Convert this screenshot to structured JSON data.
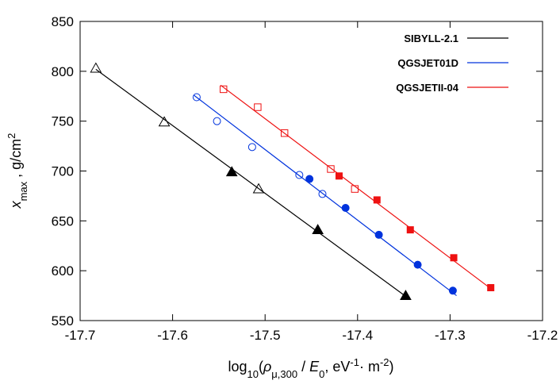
{
  "chart_data": {
    "type": "scatter",
    "xlabel": {
      "parts": [
        {
          "t": "log"
        },
        {
          "t": "10",
          "sub": true
        },
        {
          "t": "("
        },
        {
          "t": "ρ",
          "italic": true
        },
        {
          "t": "μ,300",
          "sub": true,
          "italic_first": true
        },
        {
          "t": " / "
        },
        {
          "t": "E",
          "italic": true
        },
        {
          "t": "0",
          "sub": true
        },
        {
          "t": ",  eV"
        },
        {
          "t": "-1",
          "sup": true
        },
        {
          "t": "· m"
        },
        {
          "t": "-2",
          "sup": true
        },
        {
          "t": ")"
        }
      ]
    },
    "ylabel": {
      "parts": [
        {
          "t": "x",
          "italic": true
        },
        {
          "t": "max",
          "sub": true
        },
        {
          "t": " ,  g/cm"
        },
        {
          "t": "2",
          "sup": true
        }
      ]
    },
    "xlim": [
      -17.7,
      -17.2
    ],
    "ylim": [
      550,
      850
    ],
    "xticks": [
      -17.7,
      -17.6,
      -17.5,
      -17.4,
      -17.3,
      -17.2
    ],
    "yticks": [
      550,
      600,
      650,
      700,
      750,
      800,
      850
    ],
    "grid": false,
    "legend_position": "top-right",
    "series": [
      {
        "name": "SIBYLL-2.1",
        "color": "#000000",
        "fit_line": [
          [
            -17.683,
            802
          ],
          [
            -17.346,
            573
          ]
        ],
        "points_open": {
          "marker": "triangle",
          "data": [
            [
              -17.683,
              803
            ],
            [
              -17.609,
              749
            ],
            [
              -17.507,
              682
            ]
          ]
        },
        "points_filled": {
          "marker": "triangle",
          "data": [
            [
              -17.536,
              699
            ],
            [
              -17.443,
              641
            ],
            [
              -17.348,
              575
            ]
          ]
        }
      },
      {
        "name": "QGSJET01D",
        "color": "#0033dd",
        "fit_line": [
          [
            -17.577,
            776
          ],
          [
            -17.293,
            575
          ]
        ],
        "points_open": {
          "marker": "circle",
          "data": [
            [
              -17.574,
              774
            ],
            [
              -17.552,
              750
            ],
            [
              -17.514,
              724
            ],
            [
              -17.463,
              696
            ],
            [
              -17.438,
              677
            ]
          ]
        },
        "points_filled": {
          "marker": "circle",
          "data": [
            [
              -17.452,
              692
            ],
            [
              -17.413,
              663
            ],
            [
              -17.377,
              636
            ],
            [
              -17.335,
              606
            ],
            [
              -17.297,
              580
            ]
          ]
        }
      },
      {
        "name": "QGSJETII-04",
        "color": "#ee1111",
        "fit_line": [
          [
            -17.548,
            786
          ],
          [
            -17.253,
            580
          ]
        ],
        "points_open": {
          "marker": "square",
          "data": [
            [
              -17.545,
              782
            ],
            [
              -17.508,
              764
            ],
            [
              -17.479,
              738
            ],
            [
              -17.429,
              702
            ],
            [
              -17.403,
              682
            ]
          ]
        },
        "points_filled": {
          "marker": "square",
          "data": [
            [
              -17.42,
              695
            ],
            [
              -17.379,
              671
            ],
            [
              -17.343,
              641
            ],
            [
              -17.296,
              613
            ],
            [
              -17.256,
              583
            ]
          ]
        }
      }
    ]
  }
}
